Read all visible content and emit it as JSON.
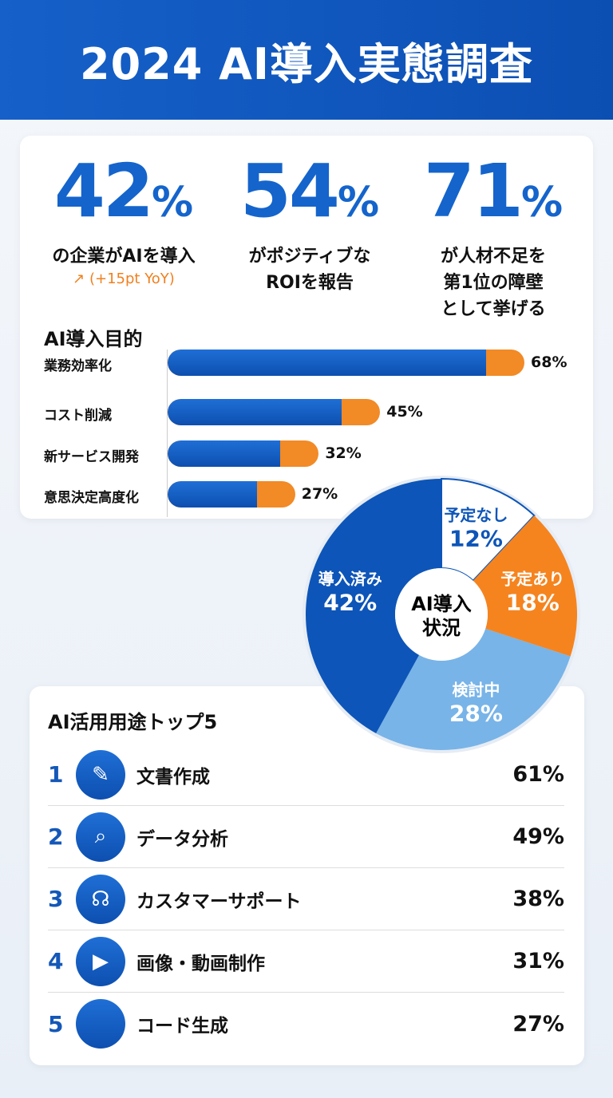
{
  "title": "2024 AI導入実態調査",
  "kpis": [
    {
      "value": "42",
      "unit": "%",
      "desc": [
        "の企業がAIを導入"
      ],
      "trend": "↗ (+15pt YoY)"
    },
    {
      "value": "54",
      "unit": "%",
      "desc": [
        "がポジティブな",
        "ROIを報告"
      ]
    },
    {
      "value": "71",
      "unit": "%",
      "desc": [
        "が人材不足を",
        "第1位の障壁",
        "として挙げる"
      ]
    }
  ],
  "chart_data": [
    {
      "type": "bar",
      "title": "AI導入目的",
      "orientation": "horizontal",
      "categories": [
        "業務効率化",
        "コスト削減",
        "新サービス開発",
        "意思決定高度化"
      ],
      "values": [
        68,
        45,
        32,
        27
      ],
      "labels": [
        "68%",
        "45%",
        "32%",
        "27%"
      ],
      "colors": {
        "bar": "#1560c9",
        "tip": "#f28a26"
      }
    },
    {
      "type": "pie",
      "style": "donut",
      "title": "AI導入状況",
      "slices": [
        {
          "label": "予定なし",
          "value": 12,
          "text": "12%",
          "color": "#ffffff"
        },
        {
          "label": "予定あり",
          "value": 18,
          "text": "18%",
          "color": "#f5841f"
        },
        {
          "label": "検討中",
          "value": 28,
          "text": "28%",
          "color": "#78b4e8"
        },
        {
          "label": "導入済み",
          "value": 42,
          "text": "42%",
          "color": "#0d55b8"
        }
      ]
    },
    {
      "type": "table",
      "title": "AI活用用途トップ5",
      "rows": [
        {
          "rank": "1",
          "icon": "document-edit-icon",
          "name": "文書作成",
          "pct": "61%"
        },
        {
          "rank": "2",
          "icon": "data-analysis-icon",
          "name": "データ分析",
          "pct": "49%"
        },
        {
          "rank": "3",
          "icon": "headset-icon",
          "name": "カスタマーサポート",
          "pct": "38%"
        },
        {
          "rank": "4",
          "icon": "image-video-icon",
          "name": "画像・動画制作",
          "pct": "31%"
        },
        {
          "rank": "5",
          "icon": "code-icon",
          "name": "コード生成",
          "pct": "27%"
        }
      ]
    }
  ]
}
